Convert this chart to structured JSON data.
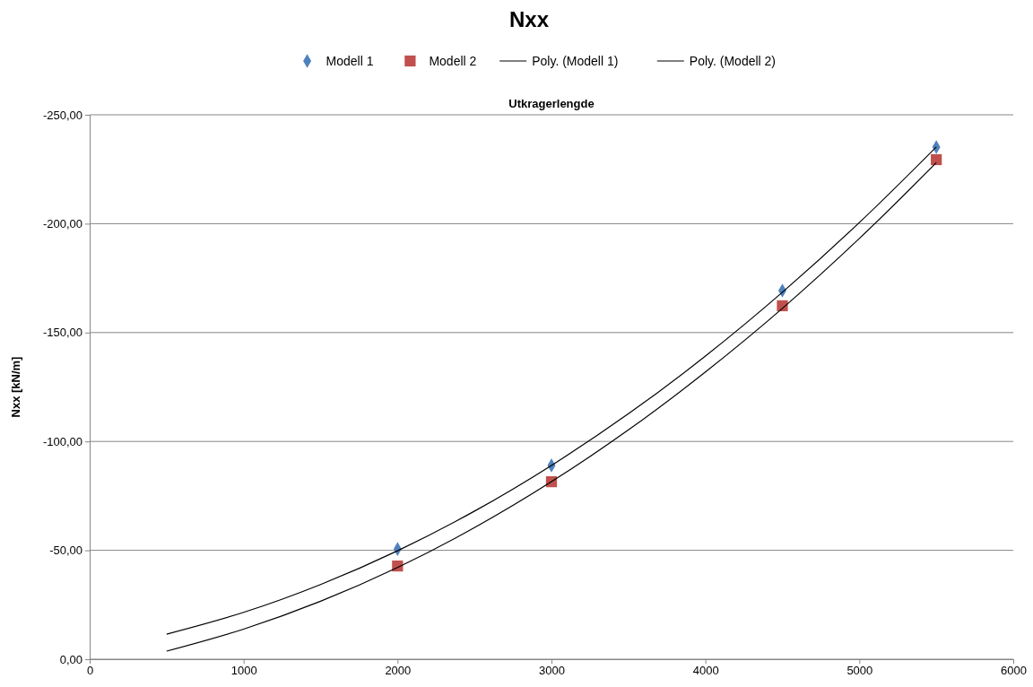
{
  "chart_data": {
    "type": "scatter",
    "title": "Nxx",
    "xlabel": "Utkragerlengde",
    "ylabel": "Nxx [kN/m]",
    "xlim": [
      0,
      6000
    ],
    "xticks": [
      0,
      1000,
      2000,
      3000,
      4000,
      5000,
      6000
    ],
    "ylim": [
      0,
      -250
    ],
    "yticks": [
      {
        "value": 0,
        "label": "0,00"
      },
      {
        "value": -50,
        "label": "-50,00"
      },
      {
        "value": -100,
        "label": "-100,00"
      },
      {
        "value": -150,
        "label": "-150,00"
      },
      {
        "value": -200,
        "label": "-200,00"
      },
      {
        "value": -250,
        "label": "-250,00"
      }
    ],
    "grid": "y",
    "legend": "top",
    "series": [
      {
        "name": "Modell 1",
        "marker": "diamond",
        "color": "#4f81bd",
        "x": [
          2000,
          3000,
          4500,
          5500
        ],
        "values": [
          -50.6,
          -89.0,
          -169.3,
          -235.2
        ]
      },
      {
        "name": "Modell 2",
        "marker": "square",
        "color": "#c0504d",
        "x": [
          2000,
          3000,
          4500,
          5500
        ],
        "values": [
          -42.8,
          -81.5,
          -162.3,
          -229.4
        ]
      },
      {
        "name": "Poly. (Modell 1)",
        "type": "line",
        "marker": "none",
        "color": "#000000",
        "x": [
          500,
          1000,
          1500,
          2000,
          2500,
          3000,
          3500,
          4000,
          4500,
          5000,
          5500
        ],
        "values": [
          -11.5,
          -21.5,
          -34.3,
          -49.8,
          -68.0,
          -89.0,
          -112.7,
          -139.2,
          -168.5,
          -200.5,
          -235.2
        ]
      },
      {
        "name": "Poly. (Modell 2)",
        "type": "line",
        "marker": "none",
        "color": "#000000",
        "x": [
          500,
          1000,
          1500,
          2000,
          2500,
          3000,
          3500,
          4000,
          4500,
          5000,
          5500
        ],
        "values": [
          -3.7,
          -13.8,
          -26.6,
          -42.1,
          -60.4,
          -81.5,
          -105.3,
          -131.9,
          -161.1,
          -193.2,
          -228.0
        ]
      }
    ]
  }
}
